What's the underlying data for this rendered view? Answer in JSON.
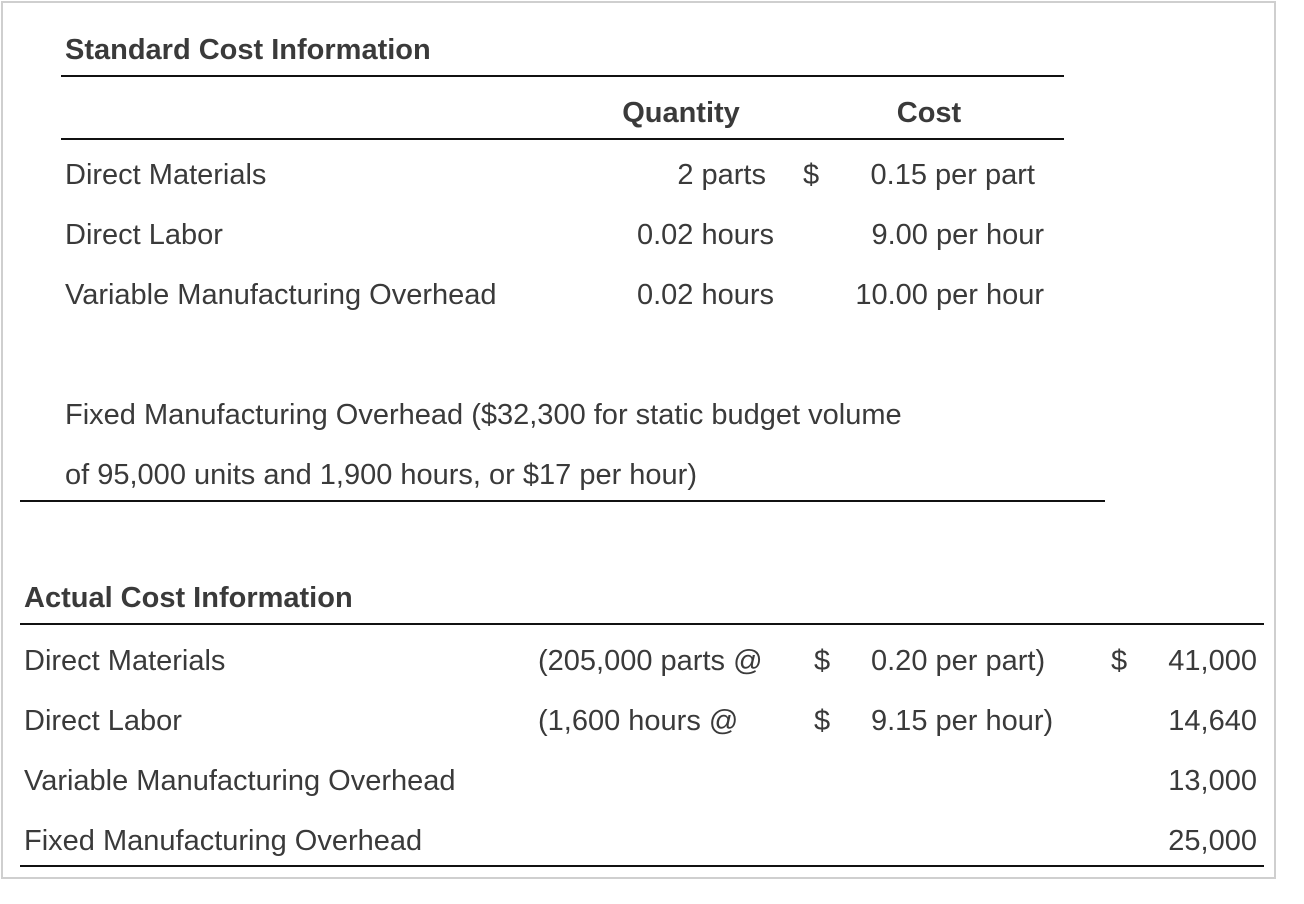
{
  "standard": {
    "title": "Standard Cost Information",
    "header_quantity": "Quantity",
    "header_cost": "Cost",
    "rows": [
      {
        "label": "Direct Materials",
        "quantity": "2 parts",
        "currency": "$",
        "cost": "0.15 per part"
      },
      {
        "label": "Direct Labor",
        "quantity": "0.02 hours",
        "currency": "",
        "cost": "9.00 per hour"
      },
      {
        "label": "Variable Manufacturing Overhead",
        "quantity": "0.02 hours",
        "currency": "",
        "cost": "10.00 per hour"
      }
    ],
    "fixed_line1": "Fixed Manufacturing Overhead ($32,300 for static budget volume",
    "fixed_line2": "of 95,000 units and 1,900 hours, or $17 per hour)"
  },
  "actual": {
    "title": "Actual Cost Information",
    "rows": [
      {
        "label": "Direct Materials",
        "detail": "(205,000 parts @",
        "currency": "$",
        "rate": "0.20 per part)",
        "total_currency": "$",
        "total": "41,000"
      },
      {
        "label": "Direct Labor",
        "detail": "(1,600 hours @",
        "currency": "$",
        "rate": "9.15 per hour)",
        "total_currency": "",
        "total": "14,640"
      },
      {
        "label": "Variable Manufacturing Overhead",
        "detail": "",
        "currency": "",
        "rate": "",
        "total_currency": "",
        "total": "13,000"
      },
      {
        "label": "Fixed Manufacturing Overhead",
        "detail": "",
        "currency": "",
        "rate": "",
        "total_currency": "",
        "total": "25,000"
      }
    ]
  }
}
